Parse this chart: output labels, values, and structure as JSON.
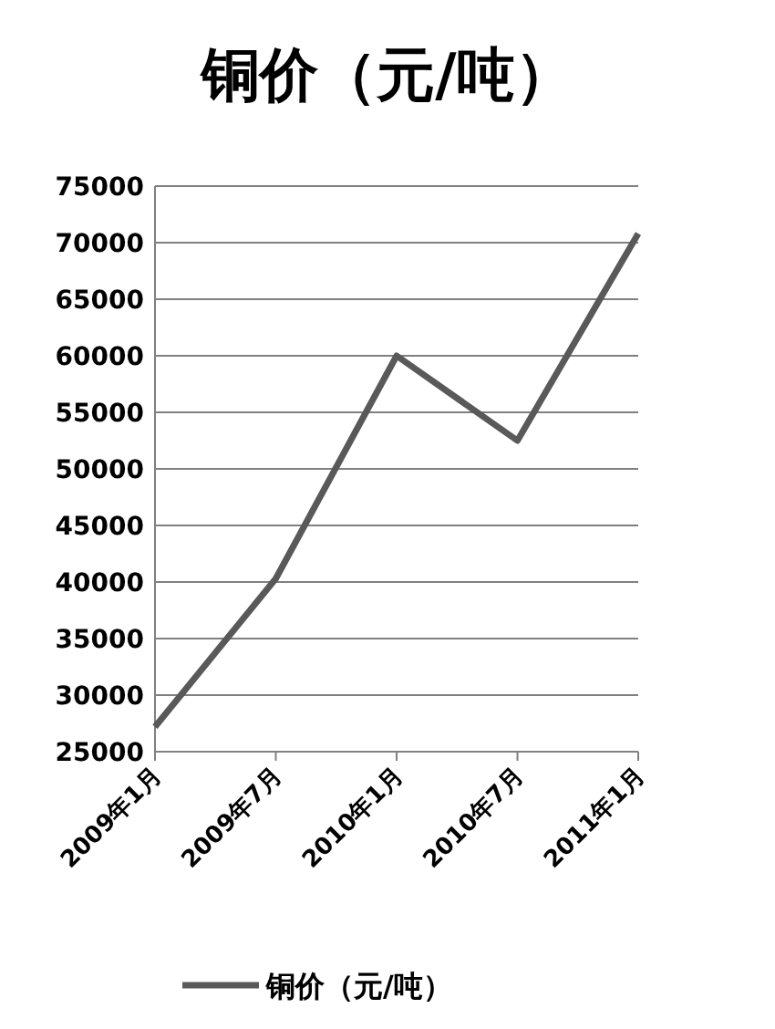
{
  "chart_data": {
    "type": "line",
    "title": "铜价（元/吨）",
    "categories": [
      "2009年1月",
      "2009年7月",
      "2010年1月",
      "2010年7月",
      "2011年1月"
    ],
    "series": [
      {
        "name": "铜价（元/吨）",
        "color": "#595959",
        "values": [
          27200,
          40300,
          60000,
          52500,
          70800
        ]
      }
    ],
    "ylim": [
      25000,
      75000
    ],
    "yticks": [
      25000,
      30000,
      35000,
      40000,
      45000,
      50000,
      55000,
      60000,
      65000,
      70000,
      75000
    ],
    "grid": "y",
    "legend": "bottom",
    "marker": "none",
    "line_style": "solid"
  }
}
